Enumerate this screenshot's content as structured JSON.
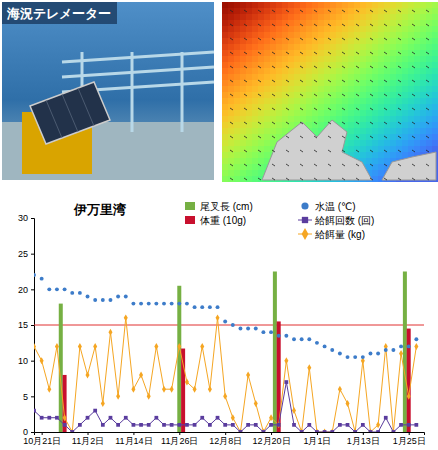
{
  "photo": {
    "label": "海況テレメーター"
  },
  "chart_data": {
    "type": "combo",
    "title": "伊万里湾",
    "x": [
      -2,
      0,
      2,
      4,
      6,
      8,
      10,
      12,
      14,
      16,
      18,
      20,
      22,
      24,
      26,
      28,
      30,
      32,
      34,
      36,
      38,
      40,
      42,
      44,
      46,
      48,
      50,
      52,
      54,
      56,
      58,
      60,
      62,
      64,
      66,
      68,
      70,
      72,
      74,
      76,
      78,
      80,
      82,
      84,
      86,
      88,
      90,
      92,
      94,
      96,
      98
    ],
    "xlim": [
      -2,
      100
    ],
    "xticks": [
      {
        "value": 0,
        "label": "10月21日"
      },
      {
        "value": 12,
        "label": "11月2日"
      },
      {
        "value": 24,
        "label": "11月14日"
      },
      {
        "value": 36,
        "label": "11月26日"
      },
      {
        "value": 48,
        "label": "12月8日"
      },
      {
        "value": 60,
        "label": "12月20日"
      },
      {
        "value": 72,
        "label": "1月1日"
      },
      {
        "value": 84,
        "label": "1月13日"
      },
      {
        "value": 96,
        "label": "1月25日"
      }
    ],
    "ylim": [
      0,
      30
    ],
    "yticks": [
      0,
      5,
      10,
      15,
      20,
      25,
      30
    ],
    "grid": false,
    "legend": "top-right",
    "threshold": 15,
    "series": [
      {
        "name": "尾叉長 (cm)",
        "type": "bar",
        "color": "#76b043",
        "x": [
          5,
          36,
          61,
          95
        ],
        "values": [
          18,
          20.5,
          22.5,
          22.5
        ]
      },
      {
        "name": "体重 (10g)",
        "type": "bar",
        "color": "#c8102e",
        "x": [
          6,
          37,
          62,
          96
        ],
        "values": [
          8,
          11.7,
          15.5,
          14.5
        ]
      },
      {
        "name": "水温 (℃)",
        "type": "scatter",
        "color": "#3d7cc9",
        "marker": "circle",
        "values": [
          22,
          21.5,
          20,
          20,
          20,
          19.5,
          19.5,
          19,
          18.5,
          18.5,
          18.5,
          19,
          19,
          18,
          18,
          18,
          18,
          18,
          18,
          18,
          18,
          17.5,
          17.5,
          17.5,
          17.5,
          15.5,
          15,
          14.5,
          14.5,
          14.5,
          14,
          14,
          13.5,
          13.5,
          13,
          13,
          13,
          12.5,
          12,
          11.5,
          11,
          10.5,
          10.5,
          10.5,
          11,
          11,
          11.5,
          11.5,
          12,
          12,
          13
        ]
      },
      {
        "name": "給餌回数 (回)",
        "type": "line",
        "color": "#5a3c9e",
        "marker": "square",
        "values": [
          3,
          2,
          2,
          2,
          1,
          0,
          1,
          2,
          3,
          1,
          2,
          1,
          2,
          1,
          1,
          1,
          2,
          1,
          1,
          1,
          1,
          1,
          2,
          1,
          2,
          1,
          1,
          0,
          1,
          1,
          0,
          1,
          1,
          7,
          1,
          0,
          1,
          0,
          0,
          0,
          1,
          1,
          0,
          1,
          0,
          0,
          2,
          0,
          1,
          1,
          1
        ]
      },
      {
        "name": "給餌量 (kg)",
        "type": "line",
        "color": "#f5a623",
        "marker": "diamond",
        "values": [
          12,
          10,
          6,
          12,
          2,
          0,
          12,
          8,
          12,
          4,
          14,
          5,
          16,
          6,
          8,
          5,
          12,
          6,
          6,
          12,
          7,
          6,
          12,
          6,
          16,
          5,
          2,
          0,
          8,
          4,
          0,
          2,
          1,
          10,
          3,
          0,
          9,
          0,
          0,
          0,
          6,
          4,
          0,
          10,
          0,
          1,
          12,
          0,
          11,
          5,
          12
        ]
      }
    ]
  }
}
